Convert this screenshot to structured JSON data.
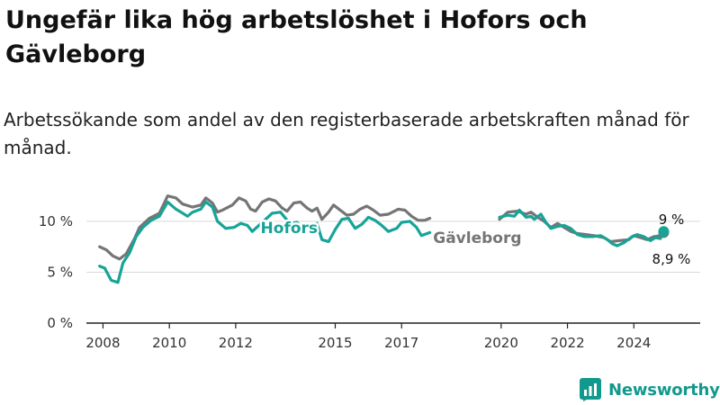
{
  "title": "Ungefär lika hög arbetslöshet i Hofors och Gävleborg",
  "subtitle": "Arbetssökande som andel av den registerbaserade arbetskraften månad för månad.",
  "brand": {
    "name": "Newsworthy",
    "color": "#12998d"
  },
  "chart_data": {
    "type": "line",
    "title": "",
    "xlabel": "",
    "ylabel": "",
    "ylim": [
      0,
      13
    ],
    "y_ticks": [
      0,
      5,
      10
    ],
    "y_tick_labels": [
      "0 %",
      "5 %",
      "10 %"
    ],
    "x_ticks": [
      2008,
      2010,
      2012,
      2015,
      2017,
      2020,
      2022,
      2024
    ],
    "x_tick_labels": [
      "2008",
      "2010",
      "2012",
      "2015",
      "2017",
      "2020",
      "2022",
      "2024"
    ],
    "grid": true,
    "legend": "inline labels",
    "series": [
      {
        "name": "Gävleborg",
        "color": "#757575",
        "points": [
          [
            2007.9,
            7.5
          ],
          [
            2008.1,
            7.2
          ],
          [
            2008.3,
            6.6
          ],
          [
            2008.5,
            6.3
          ],
          [
            2008.7,
            6.8
          ],
          [
            2008.95,
            8.3
          ],
          [
            2009.1,
            9.4
          ],
          [
            2009.4,
            10.3
          ],
          [
            2009.7,
            10.8
          ],
          [
            2009.95,
            12.5
          ],
          [
            2010.2,
            12.3
          ],
          [
            2010.4,
            11.7
          ],
          [
            2010.7,
            11.4
          ],
          [
            2010.95,
            11.6
          ],
          [
            2011.1,
            12.3
          ],
          [
            2011.3,
            11.8
          ],
          [
            2011.45,
            10.9
          ],
          [
            2011.6,
            11.1
          ],
          [
            2011.9,
            11.6
          ],
          [
            2012.1,
            12.3
          ],
          [
            2012.3,
            12.0
          ],
          [
            2012.45,
            11.2
          ],
          [
            2012.6,
            11.0
          ],
          [
            2012.8,
            11.9
          ],
          [
            2013.0,
            12.2
          ],
          [
            2013.2,
            12.0
          ],
          [
            2013.4,
            11.3
          ],
          [
            2013.55,
            11.0
          ],
          [
            2013.75,
            11.8
          ],
          [
            2013.95,
            11.9
          ],
          [
            2014.15,
            11.3
          ],
          [
            2014.3,
            11.0
          ],
          [
            2014.45,
            11.3
          ],
          [
            2014.6,
            10.2
          ],
          [
            2014.8,
            10.9
          ],
          [
            2014.95,
            11.6
          ],
          [
            2015.15,
            11.1
          ],
          [
            2015.35,
            10.6
          ],
          [
            2015.55,
            10.7
          ],
          [
            2015.75,
            11.2
          ],
          [
            2015.95,
            11.5
          ],
          [
            2016.15,
            11.1
          ],
          [
            2016.35,
            10.6
          ],
          [
            2016.6,
            10.7
          ],
          [
            2016.9,
            11.2
          ],
          [
            2017.1,
            11.1
          ],
          [
            2017.3,
            10.5
          ],
          [
            2017.5,
            10.1
          ],
          [
            2017.7,
            10.1
          ],
          [
            2017.85,
            10.3
          ],
          [
            2019.95,
            10.2
          ],
          [
            2020.2,
            10.9
          ],
          [
            2020.5,
            11.0
          ],
          [
            2020.75,
            10.7
          ],
          [
            2020.9,
            10.9
          ],
          [
            2021.1,
            10.4
          ],
          [
            2021.3,
            10.0
          ],
          [
            2021.5,
            9.4
          ],
          [
            2021.7,
            9.8
          ],
          [
            2021.9,
            9.4
          ],
          [
            2022.1,
            9.0
          ],
          [
            2022.3,
            8.8
          ],
          [
            2022.55,
            8.7
          ],
          [
            2022.8,
            8.6
          ],
          [
            2023.1,
            8.4
          ],
          [
            2023.3,
            8.0
          ],
          [
            2023.55,
            8.1
          ],
          [
            2023.85,
            8.2
          ],
          [
            2024.0,
            8.6
          ],
          [
            2024.2,
            8.4
          ],
          [
            2024.4,
            8.2
          ],
          [
            2024.6,
            8.5
          ],
          [
            2024.8,
            8.6
          ],
          [
            2024.9,
            8.9
          ]
        ],
        "label": "Gävleborg",
        "end_label": "8,9 %"
      },
      {
        "name": "Hofors",
        "color": "#17a497",
        "points": [
          [
            2007.9,
            5.6
          ],
          [
            2008.05,
            5.4
          ],
          [
            2008.25,
            4.2
          ],
          [
            2008.45,
            4.0
          ],
          [
            2008.6,
            5.9
          ],
          [
            2008.8,
            6.9
          ],
          [
            2009.0,
            8.5
          ],
          [
            2009.2,
            9.4
          ],
          [
            2009.45,
            10.1
          ],
          [
            2009.7,
            10.5
          ],
          [
            2009.95,
            11.9
          ],
          [
            2010.2,
            11.2
          ],
          [
            2010.35,
            10.9
          ],
          [
            2010.55,
            10.5
          ],
          [
            2010.7,
            10.9
          ],
          [
            2010.95,
            11.2
          ],
          [
            2011.1,
            11.9
          ],
          [
            2011.3,
            11.4
          ],
          [
            2011.45,
            10.0
          ],
          [
            2011.7,
            9.3
          ],
          [
            2011.95,
            9.4
          ],
          [
            2012.15,
            9.8
          ],
          [
            2012.35,
            9.6
          ],
          [
            2012.5,
            9.0
          ],
          [
            2012.7,
            9.6
          ],
          [
            2012.9,
            10.2
          ],
          [
            2013.1,
            10.8
          ],
          [
            2013.35,
            10.9
          ],
          [
            2013.5,
            10.3
          ],
          [
            2013.65,
            9.8
          ],
          [
            2013.85,
            9.9
          ],
          [
            2014.05,
            9.2
          ],
          [
            2014.25,
            8.9
          ],
          [
            2014.45,
            9.8
          ],
          [
            2014.6,
            8.2
          ],
          [
            2014.8,
            8.0
          ],
          [
            2015.0,
            9.2
          ],
          [
            2015.2,
            10.2
          ],
          [
            2015.4,
            10.3
          ],
          [
            2015.6,
            9.3
          ],
          [
            2015.8,
            9.7
          ],
          [
            2016.0,
            10.4
          ],
          [
            2016.2,
            10.1
          ],
          [
            2016.4,
            9.6
          ],
          [
            2016.6,
            9.0
          ],
          [
            2016.85,
            9.3
          ],
          [
            2017.0,
            9.9
          ],
          [
            2017.25,
            10.0
          ],
          [
            2017.45,
            9.4
          ],
          [
            2017.6,
            8.6
          ],
          [
            2017.85,
            8.9
          ],
          [
            2019.95,
            10.4
          ],
          [
            2020.2,
            10.6
          ],
          [
            2020.4,
            10.5
          ],
          [
            2020.55,
            11.1
          ],
          [
            2020.75,
            10.4
          ],
          [
            2020.9,
            10.5
          ],
          [
            2021.0,
            10.2
          ],
          [
            2021.2,
            10.7
          ],
          [
            2021.35,
            9.9
          ],
          [
            2021.5,
            9.3
          ],
          [
            2021.7,
            9.5
          ],
          [
            2021.9,
            9.6
          ],
          [
            2022.1,
            9.3
          ],
          [
            2022.3,
            8.7
          ],
          [
            2022.5,
            8.5
          ],
          [
            2022.75,
            8.5
          ],
          [
            2023.0,
            8.6
          ],
          [
            2023.2,
            8.2
          ],
          [
            2023.35,
            7.8
          ],
          [
            2023.5,
            7.6
          ],
          [
            2023.7,
            7.9
          ],
          [
            2023.95,
            8.5
          ],
          [
            2024.1,
            8.7
          ],
          [
            2024.3,
            8.5
          ],
          [
            2024.5,
            8.1
          ],
          [
            2024.65,
            8.4
          ],
          [
            2024.8,
            8.3
          ],
          [
            2024.9,
            9.0
          ]
        ],
        "label": "Hofors",
        "end_label": "9 %"
      }
    ]
  }
}
